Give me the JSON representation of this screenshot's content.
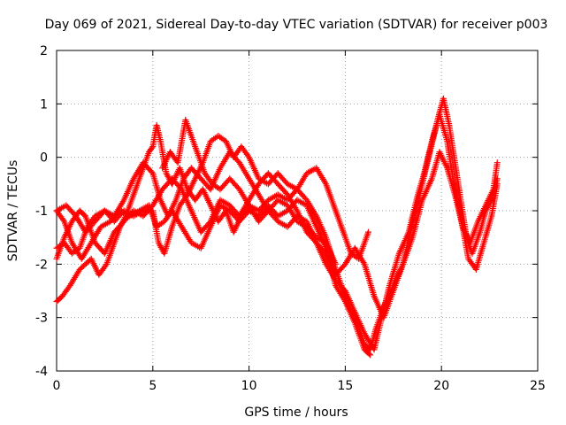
{
  "chart_data": {
    "type": "scatter",
    "title": "Day 069 of 2021, Sidereal Day-to-day VTEC variation (SDTVAR) for receiver p003",
    "xlabel": "GPS time / hours",
    "ylabel": "SDTVAR / TECUs",
    "xlim": [
      0,
      25
    ],
    "ylim": [
      -4,
      2
    ],
    "xticks": [
      "0",
      "5",
      "10",
      "15",
      "20",
      "25"
    ],
    "yticks": [
      "-4",
      "-3",
      "-2",
      "-1",
      "0",
      "1",
      "2"
    ],
    "grid": true,
    "marker": "plus",
    "color": "#ff0000",
    "series": [
      {
        "name": "track-1",
        "points": [
          [
            0.0,
            -2.7
          ],
          [
            0.3,
            -2.6
          ],
          [
            0.7,
            -2.4
          ],
          [
            1.2,
            -2.1
          ],
          [
            1.8,
            -1.9
          ],
          [
            2.2,
            -2.2
          ],
          [
            2.6,
            -2.0
          ],
          [
            3.0,
            -1.6
          ],
          [
            3.3,
            -1.3
          ],
          [
            3.6,
            -1.1
          ],
          [
            4.0,
            -0.7
          ],
          [
            4.4,
            -0.3
          ],
          [
            4.8,
            0.1
          ],
          [
            5.0,
            0.2
          ],
          [
            5.2,
            0.6
          ],
          [
            5.4,
            0.3
          ],
          [
            5.7,
            -0.3
          ],
          [
            6.0,
            -0.5
          ],
          [
            6.4,
            -0.2
          ],
          [
            6.8,
            -0.6
          ],
          [
            7.2,
            -0.8
          ],
          [
            7.6,
            -0.6
          ],
          [
            8.0,
            -0.9
          ],
          [
            8.4,
            -1.2
          ],
          [
            8.8,
            -1.0
          ],
          [
            9.2,
            -1.4
          ],
          [
            9.6,
            -1.1
          ],
          [
            10.0,
            -0.9
          ],
          [
            10.5,
            -1.0
          ],
          [
            11.0,
            -0.8
          ],
          [
            11.5,
            -0.7
          ],
          [
            12.0,
            -0.8
          ],
          [
            12.5,
            -0.6
          ],
          [
            13.0,
            -0.8
          ],
          [
            13.5,
            -1.1
          ],
          [
            14.0,
            -1.5
          ],
          [
            14.5,
            -2.1
          ],
          [
            15.0,
            -2.6
          ],
          [
            15.5,
            -3.0
          ],
          [
            16.0,
            -3.5
          ],
          [
            16.3,
            -3.6
          ],
          [
            16.6,
            -3.2
          ],
          [
            17.0,
            -2.8
          ],
          [
            17.5,
            -2.4
          ],
          [
            18.0,
            -2.0
          ],
          [
            18.5,
            -1.2
          ],
          [
            19.0,
            -0.5
          ],
          [
            19.4,
            0.1
          ],
          [
            19.8,
            0.7
          ],
          [
            20.1,
            1.1
          ],
          [
            20.4,
            0.6
          ],
          [
            20.7,
            -0.1
          ],
          [
            21.0,
            -0.8
          ],
          [
            21.3,
            -1.5
          ],
          [
            21.6,
            -1.8
          ],
          [
            22.0,
            -1.4
          ],
          [
            22.3,
            -1.0
          ],
          [
            22.6,
            -0.8
          ],
          [
            22.9,
            -0.4
          ]
        ]
      },
      {
        "name": "track-2",
        "points": [
          [
            0.0,
            -1.7
          ],
          [
            0.4,
            -1.6
          ],
          [
            0.8,
            -1.8
          ],
          [
            1.2,
            -1.7
          ],
          [
            1.6,
            -1.3
          ],
          [
            2.0,
            -1.1
          ],
          [
            2.5,
            -1.0
          ],
          [
            3.0,
            -1.1
          ],
          [
            3.5,
            -0.8
          ],
          [
            4.0,
            -0.4
          ],
          [
            4.5,
            -0.1
          ],
          [
            5.0,
            -0.3
          ],
          [
            5.4,
            -0.8
          ],
          [
            5.8,
            -1.1
          ],
          [
            6.2,
            -0.8
          ],
          [
            6.6,
            -0.4
          ],
          [
            7.0,
            -0.2
          ],
          [
            7.5,
            -0.4
          ],
          [
            8.0,
            -0.6
          ],
          [
            8.5,
            -0.2
          ],
          [
            9.0,
            0.1
          ],
          [
            9.5,
            -0.1
          ],
          [
            10.0,
            -0.4
          ],
          [
            10.5,
            -0.7
          ],
          [
            11.0,
            -1.0
          ],
          [
            11.5,
            -1.2
          ],
          [
            12.0,
            -1.3
          ],
          [
            12.5,
            -1.1
          ],
          [
            13.0,
            -1.2
          ],
          [
            13.5,
            -1.6
          ],
          [
            14.0,
            -2.0
          ],
          [
            14.5,
            -2.3
          ],
          [
            15.0,
            -2.5
          ],
          [
            15.5,
            -2.9
          ],
          [
            16.0,
            -3.3
          ],
          [
            16.5,
            -3.6
          ],
          [
            16.9,
            -3.0
          ],
          [
            17.3,
            -2.4
          ],
          [
            17.8,
            -1.8
          ],
          [
            18.3,
            -1.4
          ],
          [
            18.7,
            -0.8
          ],
          [
            19.1,
            -0.3
          ],
          [
            19.5,
            0.3
          ],
          [
            19.9,
            0.8
          ],
          [
            20.3,
            0.3
          ],
          [
            20.6,
            -0.4
          ],
          [
            21.0,
            -1.1
          ],
          [
            21.4,
            -1.9
          ],
          [
            21.8,
            -2.1
          ],
          [
            22.2,
            -1.6
          ],
          [
            22.6,
            -1.1
          ],
          [
            22.9,
            -0.5
          ]
        ]
      },
      {
        "name": "track-3",
        "points": [
          [
            0.0,
            -1.0
          ],
          [
            0.5,
            -0.9
          ],
          [
            1.0,
            -1.1
          ],
          [
            1.5,
            -1.4
          ],
          [
            2.0,
            -1.2
          ],
          [
            2.5,
            -1.0
          ],
          [
            3.0,
            -1.2
          ],
          [
            3.5,
            -1.0
          ],
          [
            4.0,
            -1.1
          ],
          [
            4.5,
            -1.0
          ],
          [
            5.0,
            -1.0
          ],
          [
            5.3,
            -1.6
          ],
          [
            5.6,
            -1.8
          ],
          [
            6.0,
            -1.3
          ],
          [
            6.4,
            -0.9
          ],
          [
            6.8,
            -0.7
          ],
          [
            7.2,
            -0.4
          ],
          [
            7.6,
            -0.1
          ],
          [
            8.0,
            0.3
          ],
          [
            8.4,
            0.4
          ],
          [
            8.8,
            0.3
          ],
          [
            9.2,
            0.0
          ],
          [
            9.6,
            0.2
          ],
          [
            10.0,
            0.0
          ],
          [
            10.5,
            -0.4
          ],
          [
            11.0,
            -0.5
          ],
          [
            11.5,
            -0.3
          ],
          [
            12.0,
            -0.5
          ],
          [
            12.5,
            -0.6
          ],
          [
            13.0,
            -0.3
          ],
          [
            13.5,
            -0.2
          ],
          [
            14.0,
            -0.5
          ],
          [
            14.5,
            -1.0
          ],
          [
            15.0,
            -1.5
          ],
          [
            15.3,
            -1.8
          ],
          [
            15.7,
            -1.9
          ],
          [
            16.0,
            -1.6
          ],
          [
            16.2,
            -1.4
          ]
        ]
      },
      {
        "name": "track-4",
        "points": [
          [
            0.0,
            -1.9
          ],
          [
            0.4,
            -1.5
          ],
          [
            0.8,
            -1.2
          ],
          [
            1.2,
            -1.0
          ],
          [
            1.5,
            -1.1
          ],
          [
            2.0,
            -1.6
          ],
          [
            2.5,
            -1.8
          ],
          [
            3.0,
            -1.4
          ],
          [
            3.5,
            -1.2
          ],
          [
            4.0,
            -1.0
          ],
          [
            4.5,
            -1.1
          ],
          [
            5.0,
            -0.9
          ],
          [
            5.5,
            -0.6
          ],
          [
            6.0,
            -0.4
          ],
          [
            6.5,
            -0.6
          ],
          [
            7.0,
            -1.0
          ],
          [
            7.5,
            -1.4
          ],
          [
            8.0,
            -1.2
          ],
          [
            8.5,
            -0.8
          ],
          [
            9.0,
            -0.9
          ],
          [
            9.5,
            -1.1
          ],
          [
            10.0,
            -0.8
          ],
          [
            10.5,
            -0.5
          ],
          [
            11.0,
            -0.3
          ],
          [
            11.5,
            -0.5
          ],
          [
            12.0,
            -0.7
          ],
          [
            12.5,
            -1.0
          ],
          [
            13.0,
            -1.4
          ],
          [
            13.5,
            -1.6
          ],
          [
            14.0,
            -1.8
          ],
          [
            14.5,
            -2.2
          ],
          [
            15.0,
            -2.0
          ],
          [
            15.5,
            -1.7
          ],
          [
            16.0,
            -2.0
          ],
          [
            16.5,
            -2.6
          ],
          [
            17.0,
            -3.0
          ],
          [
            17.5,
            -2.5
          ],
          [
            18.0,
            -2.0
          ],
          [
            18.5,
            -1.5
          ],
          [
            19.0,
            -0.8
          ],
          [
            19.5,
            -0.4
          ],
          [
            19.9,
            0.1
          ],
          [
            20.3,
            -0.2
          ],
          [
            20.7,
            -0.7
          ],
          [
            21.1,
            -1.3
          ],
          [
            21.5,
            -1.6
          ],
          [
            21.9,
            -1.2
          ],
          [
            22.3,
            -0.9
          ],
          [
            22.7,
            -0.6
          ],
          [
            22.9,
            -0.1
          ]
        ]
      },
      {
        "name": "track-5",
        "points": [
          [
            0.0,
            -1.0
          ],
          [
            0.4,
            -1.2
          ],
          [
            0.8,
            -1.6
          ],
          [
            1.3,
            -1.9
          ],
          [
            1.8,
            -1.6
          ],
          [
            2.3,
            -1.3
          ],
          [
            2.8,
            -1.2
          ],
          [
            3.3,
            -1.0
          ],
          [
            3.8,
            -1.1
          ],
          [
            4.3,
            -1.0
          ],
          [
            4.8,
            -0.9
          ],
          [
            5.2,
            -1.3
          ],
          [
            5.6,
            -1.2
          ],
          [
            6.0,
            -1.0
          ],
          [
            6.5,
            -1.3
          ],
          [
            7.0,
            -1.6
          ],
          [
            7.5,
            -1.7
          ],
          [
            8.0,
            -1.3
          ],
          [
            8.5,
            -0.9
          ],
          [
            9.0,
            -1.0
          ],
          [
            9.5,
            -1.2
          ],
          [
            10.0,
            -1.0
          ],
          [
            10.5,
            -1.1
          ],
          [
            11.0,
            -0.9
          ],
          [
            11.5,
            -1.1
          ],
          [
            12.0,
            -1.0
          ],
          [
            12.5,
            -0.8
          ],
          [
            13.0,
            -0.9
          ],
          [
            13.5,
            -1.3
          ],
          [
            14.0,
            -1.7
          ],
          [
            14.5,
            -2.4
          ],
          [
            15.0,
            -2.7
          ],
          [
            15.5,
            -3.1
          ],
          [
            16.0,
            -3.6
          ],
          [
            16.3,
            -3.7
          ]
        ]
      },
      {
        "name": "track-6",
        "points": [
          [
            5.5,
            -0.2
          ],
          [
            5.9,
            0.1
          ],
          [
            6.3,
            -0.1
          ],
          [
            6.7,
            0.7
          ],
          [
            7.0,
            0.4
          ],
          [
            7.3,
            0.1
          ],
          [
            7.7,
            -0.3
          ],
          [
            8.1,
            -0.5
          ],
          [
            8.5,
            -0.6
          ],
          [
            9.0,
            -0.4
          ],
          [
            9.5,
            -0.6
          ],
          [
            10.0,
            -0.9
          ],
          [
            10.5,
            -1.2
          ],
          [
            11.0,
            -1.0
          ],
          [
            11.5,
            -0.8
          ],
          [
            12.0,
            -0.9
          ],
          [
            12.5,
            -1.2
          ],
          [
            13.0,
            -1.3
          ],
          [
            13.5,
            -1.5
          ],
          [
            14.0,
            -1.6
          ],
          [
            14.5,
            -2.0
          ]
        ]
      }
    ]
  }
}
